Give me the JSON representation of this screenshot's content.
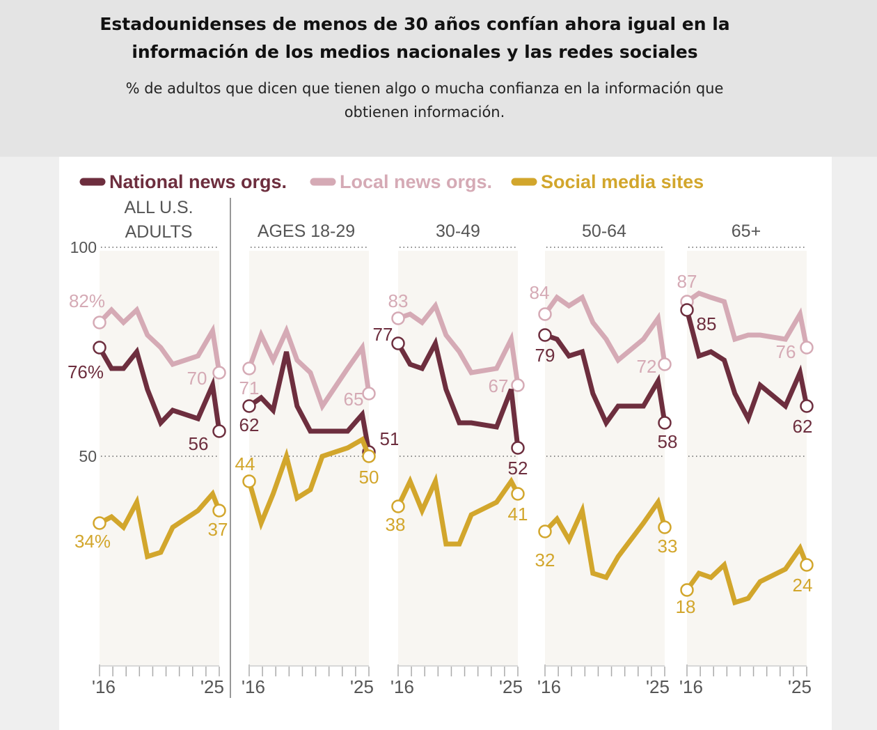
{
  "header": {
    "title_lines": [
      "Estadounidenses de menos de 30 años confían ahora igual en la",
      "información de los medios nacionales y las redes sociales"
    ],
    "subtitle_lines": [
      "% de adultos que dicen que tienen algo o mucha confianza en la información que",
      "obtienen información."
    ]
  },
  "chart_data": {
    "type": "line",
    "legend": {
      "placement": "top-left",
      "entries": [
        "National news orgs.",
        "Local news orgs.",
        "Social media sites"
      ]
    },
    "colors": {
      "national": "#6d2e3e",
      "local": "#d5aab5",
      "social": "#d2a62c",
      "panel_bg": "#f8f6f2"
    },
    "ylim": [
      0,
      100
    ],
    "y_ticks": [
      "100",
      "50"
    ],
    "xlim": [
      2016,
      2025
    ],
    "x_tick_labels": [
      "'16",
      "'25"
    ],
    "grid": "dotted lines at 50 and 100",
    "x": [
      2016,
      2016.9,
      2017.8,
      2018.8,
      2019.6,
      2020.6,
      2021.5,
      2023.4,
      2024.5,
      2025
    ],
    "panels": [
      {
        "title": [
          "ALL U.S.",
          "ADULTS"
        ],
        "series": {
          "national": [
            76,
            71,
            71,
            75,
            66,
            58,
            61,
            59,
            67,
            56
          ],
          "local": [
            82,
            85,
            82,
            85,
            79,
            76,
            72,
            74,
            80,
            70
          ],
          "social": [
            34,
            35.5,
            33,
            39,
            26,
            27,
            33,
            37,
            41,
            37
          ]
        },
        "labels": {
          "national": [
            "76%",
            "56"
          ],
          "local": [
            "82%",
            "70"
          ],
          "social": [
            "34%",
            "37"
          ]
        }
      },
      {
        "title": [
          "AGES 18-29"
        ],
        "series": {
          "national": [
            62,
            64,
            61,
            75,
            62,
            56,
            56,
            56,
            60,
            51
          ],
          "local": [
            71,
            79,
            73,
            80,
            73,
            70,
            62,
            71,
            76,
            65
          ],
          "social": [
            44,
            34,
            41,
            50,
            40,
            42,
            50,
            52,
            54,
            50
          ]
        },
        "labels": {
          "national": [
            "62",
            "51"
          ],
          "local": [
            "71",
            "65"
          ],
          "social": [
            "44",
            "50"
          ]
        }
      },
      {
        "title": [
          "30-49"
        ],
        "series": {
          "national": [
            77,
            72,
            71,
            77,
            66,
            58,
            58,
            57,
            66,
            52
          ],
          "local": [
            83,
            84,
            82,
            86,
            79,
            75,
            70,
            71,
            78,
            67
          ],
          "social": [
            38,
            44,
            37,
            44,
            29,
            29,
            36,
            39,
            44,
            41
          ]
        },
        "labels": {
          "national": [
            "77",
            "52"
          ],
          "local": [
            "83",
            "67"
          ],
          "social": [
            "38",
            "41"
          ]
        }
      },
      {
        "title": [
          "50-64"
        ],
        "series": {
          "national": [
            79,
            78,
            74,
            75,
            65,
            58,
            62,
            62,
            68,
            58
          ],
          "local": [
            84,
            88,
            86,
            88,
            82,
            78,
            73,
            78,
            83,
            72
          ],
          "social": [
            32,
            35,
            30,
            37,
            22,
            21,
            26,
            34,
            39,
            33
          ]
        },
        "labels": {
          "national": [
            "79",
            "58"
          ],
          "local": [
            "84",
            "72"
          ],
          "social": [
            "32",
            "33"
          ]
        }
      },
      {
        "title": [
          "65+"
        ],
        "series": {
          "national": [
            85,
            74,
            75,
            73,
            65,
            59,
            67,
            62,
            70,
            62
          ],
          "local": [
            87,
            89,
            88,
            87,
            78,
            79,
            79,
            78,
            84,
            76
          ],
          "social": [
            18,
            22,
            21,
            24,
            15,
            16,
            20,
            23,
            28,
            24
          ]
        },
        "labels": {
          "national": [
            "85",
            "62"
          ],
          "local": [
            "87",
            "76"
          ],
          "social": [
            "18",
            "24"
          ]
        }
      }
    ]
  }
}
